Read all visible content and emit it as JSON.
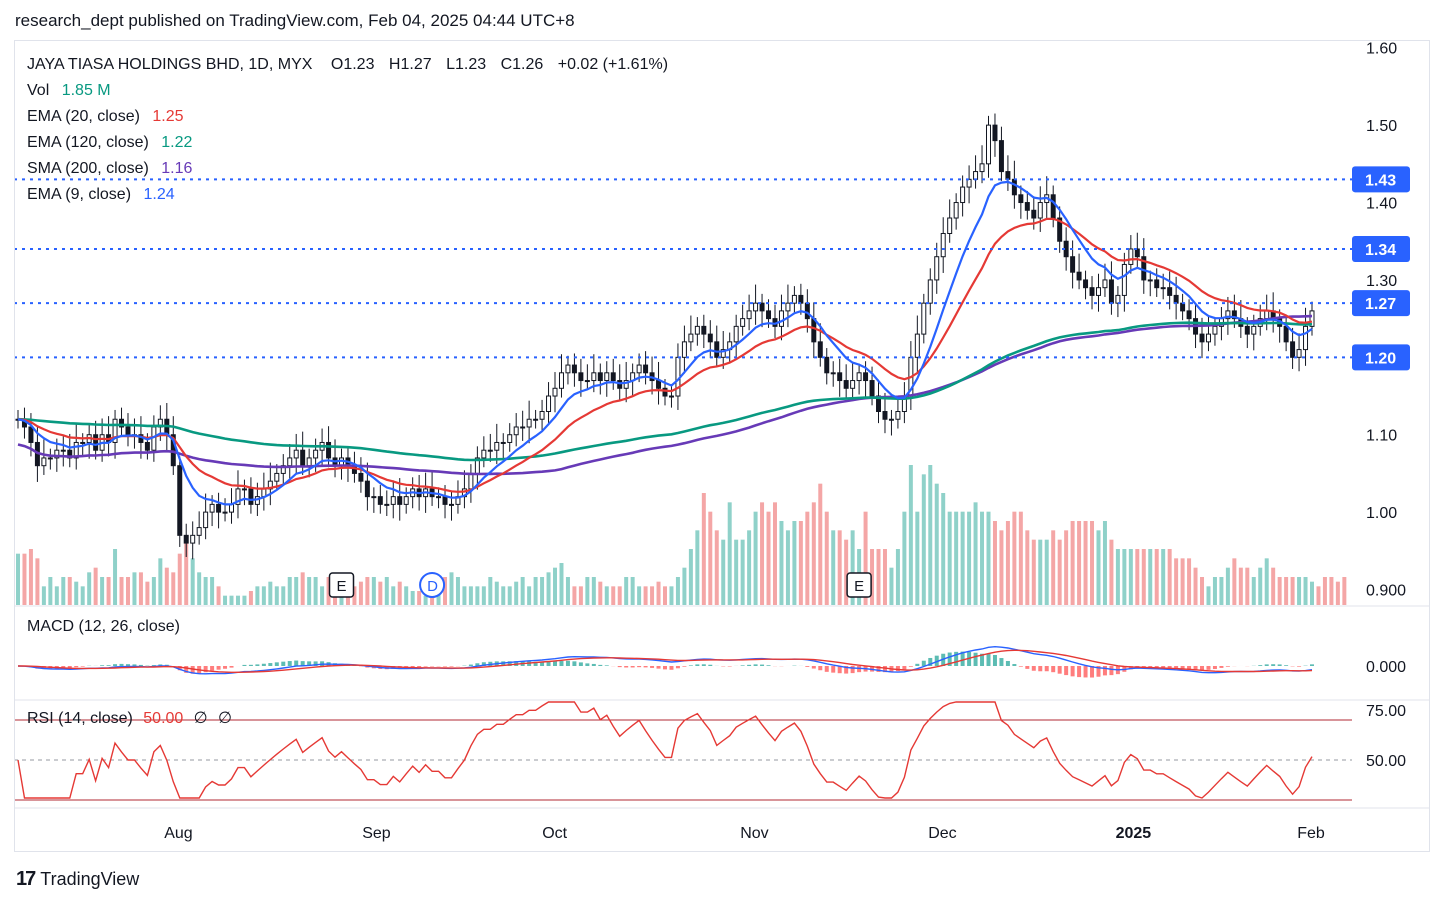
{
  "header": {
    "published": "research_dept published on TradingView.com, Feb 04, 2025 04:44 UTC+8"
  },
  "legend": {
    "symbol": "JAYA TIASA HOLDINGS BHD, 1D, MYX",
    "open": "O1.23",
    "high": "H1.27",
    "low": "L1.23",
    "close": "C1.26",
    "change": "+0.02 (+1.61%)",
    "vol_label": "Vol",
    "vol_value": "1.85 M",
    "ema20_label": "EMA (20, close)",
    "ema20_value": "1.25",
    "ema120_label": "EMA (120, close)",
    "ema120_value": "1.22",
    "sma200_label": "SMA (200, close)",
    "sma200_value": "1.16",
    "ema9_label": "EMA (9, close)",
    "ema9_value": "1.24"
  },
  "macd": {
    "label": "MACD (12, 26, close)"
  },
  "rsi": {
    "label": "RSI (14, close)",
    "value": "50.00",
    "extra1": "∅",
    "extra2": "∅"
  },
  "footer": {
    "brand": "TradingView",
    "logo": "17"
  },
  "colors": {
    "up": "#ffffff",
    "down": "#131722",
    "vol_up": "#8fd1c9",
    "vol_down": "#f4a6a6",
    "ema20": "#e53935",
    "ema120": "#089981",
    "sma200": "#673ab7",
    "ema9": "#2962ff",
    "hline": "#2962ff",
    "macd": "#2962ff",
    "signal": "#e53935"
  },
  "chart_data": {
    "type": "candlestick",
    "price_axis": {
      "ticks": [
        "1.60",
        "1.50",
        "1.40",
        "1.30",
        "1.10",
        "1.00",
        "0.900"
      ],
      "ylim": [
        0.88,
        1.61
      ]
    },
    "hlines": [
      {
        "label": "1.43",
        "value": 1.43
      },
      {
        "label": "1.34",
        "value": 1.34
      },
      {
        "label": "1.27",
        "value": 1.27
      },
      {
        "label": "1.20",
        "value": 1.2
      }
    ],
    "x_labels": [
      "Aug",
      "Sep",
      "Oct",
      "Nov",
      "Dec",
      "2025",
      "Feb"
    ],
    "events": [
      {
        "label": "E",
        "date_index": 50
      },
      {
        "label": "D",
        "date_index": 64
      },
      {
        "label": "E",
        "date_index": 130
      }
    ],
    "macd_axis": {
      "ticks": [
        "0.000"
      ]
    },
    "rsi_axis": {
      "ticks": [
        "75.00",
        "50.00"
      ],
      "bands": [
        70,
        30
      ]
    },
    "closes": [
      1.12,
      1.11,
      1.09,
      1.06,
      1.07,
      1.07,
      1.08,
      1.08,
      1.07,
      1.09,
      1.09,
      1.1,
      1.08,
      1.1,
      1.09,
      1.12,
      1.11,
      1.1,
      1.1,
      1.09,
      1.08,
      1.11,
      1.12,
      1.1,
      1.06,
      0.97,
      0.96,
      0.97,
      0.98,
      1.0,
      1.01,
      1.0,
      1.0,
      1.01,
      1.03,
      1.03,
      1.01,
      1.02,
      1.03,
      1.04,
      1.05,
      1.06,
      1.07,
      1.08,
      1.06,
      1.07,
      1.08,
      1.09,
      1.07,
      1.06,
      1.07,
      1.06,
      1.05,
      1.04,
      1.02,
      1.02,
      1.01,
      1.01,
      1.02,
      1.01,
      1.02,
      1.03,
      1.02,
      1.03,
      1.02,
      1.02,
      1.01,
      1.01,
      1.02,
      1.03,
      1.05,
      1.07,
      1.08,
      1.08,
      1.09,
      1.09,
      1.1,
      1.11,
      1.11,
      1.12,
      1.12,
      1.13,
      1.15,
      1.16,
      1.18,
      1.19,
      1.18,
      1.17,
      1.17,
      1.18,
      1.17,
      1.18,
      1.17,
      1.16,
      1.17,
      1.18,
      1.19,
      1.18,
      1.17,
      1.16,
      1.15,
      1.15,
      1.2,
      1.22,
      1.23,
      1.24,
      1.23,
      1.22,
      1.2,
      1.21,
      1.22,
      1.24,
      1.25,
      1.26,
      1.27,
      1.26,
      1.25,
      1.24,
      1.26,
      1.27,
      1.28,
      1.27,
      1.25,
      1.22,
      1.2,
      1.18,
      1.18,
      1.17,
      1.16,
      1.17,
      1.18,
      1.17,
      1.15,
      1.13,
      1.12,
      1.12,
      1.13,
      1.15,
      1.2,
      1.23,
      1.27,
      1.3,
      1.33,
      1.36,
      1.38,
      1.4,
      1.42,
      1.43,
      1.44,
      1.45,
      1.5,
      1.48,
      1.44,
      1.43,
      1.41,
      1.4,
      1.39,
      1.38,
      1.4,
      1.41,
      1.38,
      1.35,
      1.33,
      1.31,
      1.3,
      1.29,
      1.28,
      1.29,
      1.3,
      1.27,
      1.28,
      1.32,
      1.34,
      1.33,
      1.3,
      1.3,
      1.29,
      1.29,
      1.28,
      1.27,
      1.26,
      1.25,
      1.23,
      1.22,
      1.23,
      1.24,
      1.25,
      1.26,
      1.25,
      1.24,
      1.23,
      1.24,
      1.25,
      1.26,
      1.25,
      1.24,
      1.22,
      1.2,
      1.21,
      1.24,
      1.26
    ],
    "volumes": [
      0.55,
      0.55,
      0.6,
      0.5,
      0.2,
      0.3,
      0.2,
      0.3,
      0.3,
      0.25,
      0.2,
      0.35,
      0.4,
      0.3,
      0.3,
      0.6,
      0.3,
      0.3,
      0.35,
      0.35,
      0.25,
      0.3,
      0.5,
      0.4,
      0.35,
      0.55,
      0.7,
      0.5,
      0.35,
      0.3,
      0.3,
      0.2,
      0.1,
      0.1,
      0.1,
      0.1,
      0.15,
      0.2,
      0.2,
      0.25,
      0.2,
      0.2,
      0.3,
      0.3,
      0.35,
      0.3,
      0.3,
      0.2,
      0.3,
      0.3,
      0.25,
      0.25,
      0.2,
      0.25,
      0.3,
      0.3,
      0.25,
      0.3,
      0.2,
      0.25,
      0.2,
      0.15,
      0.15,
      0.1,
      0.1,
      0.2,
      0.3,
      0.35,
      0.3,
      0.2,
      0.2,
      0.2,
      0.2,
      0.3,
      0.25,
      0.2,
      0.2,
      0.25,
      0.3,
      0.2,
      0.3,
      0.3,
      0.35,
      0.4,
      0.45,
      0.3,
      0.2,
      0.2,
      0.3,
      0.3,
      0.25,
      0.2,
      0.2,
      0.2,
      0.3,
      0.3,
      0.2,
      0.2,
      0.2,
      0.25,
      0.2,
      0.2,
      0.3,
      0.4,
      0.6,
      0.8,
      1.2,
      1.0,
      0.8,
      0.7,
      1.1,
      0.7,
      0.7,
      0.8,
      1.0,
      1.1,
      1.0,
      1.1,
      0.9,
      0.8,
      0.9,
      0.9,
      1.0,
      1.1,
      1.3,
      1.0,
      0.8,
      0.8,
      0.7,
      0.8,
      0.6,
      1.0,
      0.6,
      0.6,
      0.6,
      0.4,
      0.6,
      1.0,
      1.5,
      1.0,
      1.4,
      1.5,
      1.3,
      1.2,
      1.0,
      1.0,
      1.0,
      1.0,
      1.1,
      1.0,
      1.0,
      0.9,
      0.8,
      0.9,
      1.0,
      1.0,
      0.8,
      0.7,
      0.7,
      0.7,
      0.8,
      0.7,
      0.8,
      0.9,
      0.9,
      0.9,
      0.9,
      0.8,
      0.9,
      0.7,
      0.6,
      0.6,
      0.6,
      0.6,
      0.6,
      0.6,
      0.6,
      0.6,
      0.6,
      0.5,
      0.5,
      0.5,
      0.4,
      0.3,
      0.2,
      0.3,
      0.3,
      0.4,
      0.5,
      0.4,
      0.4,
      0.3,
      0.4,
      0.5,
      0.4,
      0.3,
      0.3,
      0.3,
      0.3,
      0.3,
      0.25,
      0.2,
      0.3,
      0.3,
      0.25,
      0.3
    ]
  }
}
